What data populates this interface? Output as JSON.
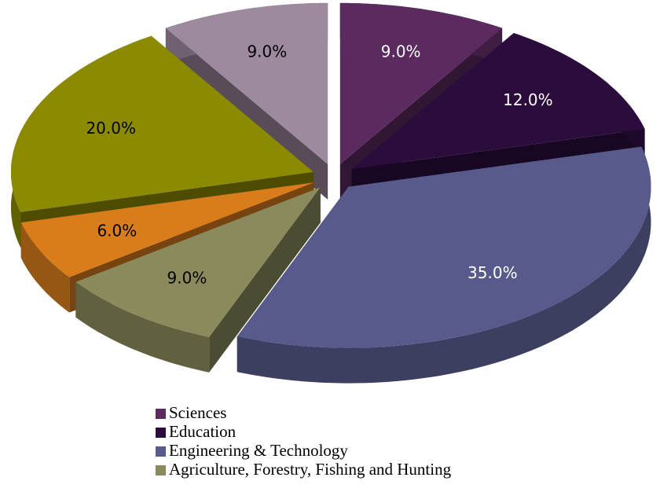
{
  "chart_data": {
    "type": "pie3d",
    "categories": [
      "Sciences",
      "Education",
      "Engineering & Technology",
      "Agriculture, Forestry, Fishing and Hunting",
      null,
      null,
      null
    ],
    "values": [
      9,
      12,
      35,
      9,
      6,
      20,
      9
    ],
    "value_labels": [
      "9.0%",
      "12.0%",
      "35.0%",
      "9.0%",
      "6.0%",
      "20.0%",
      "9.0%"
    ],
    "colors": [
      "#5b2a5e",
      "#2b0c3d",
      "#575a8a",
      "#8a8a5c",
      "#d87c1c",
      "#8c8a00",
      "#9e8a9e"
    ],
    "legend": "bottom"
  }
}
